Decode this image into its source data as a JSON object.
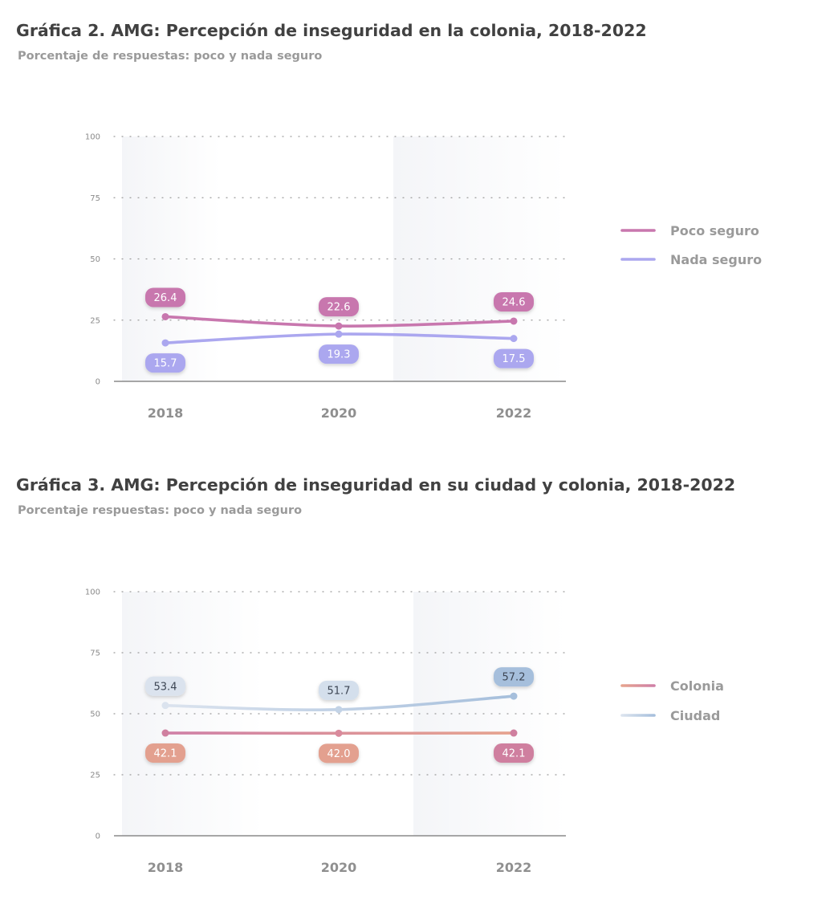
{
  "colors": {
    "poco_seguro": "#c877ae",
    "nada_seguro": "#aba7ef",
    "colonia_start": "#cf7f9f",
    "colonia_end": "#e3a08f",
    "ciudad_start": "#dbe3ee",
    "ciudad_end": "#a6bfdc",
    "axis": "#8a8a8a",
    "band": "#f4f5f8"
  },
  "chart_data": [
    {
      "type": "line",
      "title": "Gráfica 2. AMG: Percepción de inseguridad en la colonia, 2018-2022",
      "subtitle": "Porcentaje de respuestas: poco y nada seguro",
      "x": [
        "2018",
        "2020",
        "2022"
      ],
      "ylim": [
        0,
        100
      ],
      "yticks": [
        0,
        25,
        50,
        75,
        100
      ],
      "grid": "dotted horizontal",
      "legend": "right",
      "series": [
        {
          "name": "Poco seguro",
          "values": [
            26.4,
            22.6,
            24.6
          ],
          "labels": [
            "26.4",
            "22.6",
            "24.6"
          ],
          "label_position": "above",
          "color": "#c877ae"
        },
        {
          "name": "Nada seguro",
          "values": [
            15.7,
            19.3,
            17.5
          ],
          "labels": [
            "15.7",
            "19.3",
            "17.5"
          ],
          "label_position": "below",
          "color": "#aba7ef"
        }
      ]
    },
    {
      "type": "line",
      "title": "Gráfica 3. AMG: Percepción de inseguridad en su ciudad y colonia, 2018-2022",
      "subtitle": "Porcentaje respuestas: poco y nada seguro",
      "x": [
        "2018",
        "2020",
        "2022"
      ],
      "ylim": [
        0,
        100
      ],
      "yticks": [
        0,
        25,
        50,
        75,
        100
      ],
      "grid": "dotted horizontal",
      "legend": "right",
      "series": [
        {
          "name": "Colonia",
          "values": [
            42.1,
            42.0,
            42.1
          ],
          "labels": [
            "42.1",
            "42.0",
            "42.1"
          ],
          "label_position": "below",
          "color": "#d98a9c"
        },
        {
          "name": "Ciudad",
          "values": [
            53.4,
            51.7,
            57.2
          ],
          "labels": [
            "53.4",
            "51.7",
            "57.2"
          ],
          "label_position": "above",
          "color": "#b3c7e0"
        }
      ]
    }
  ]
}
